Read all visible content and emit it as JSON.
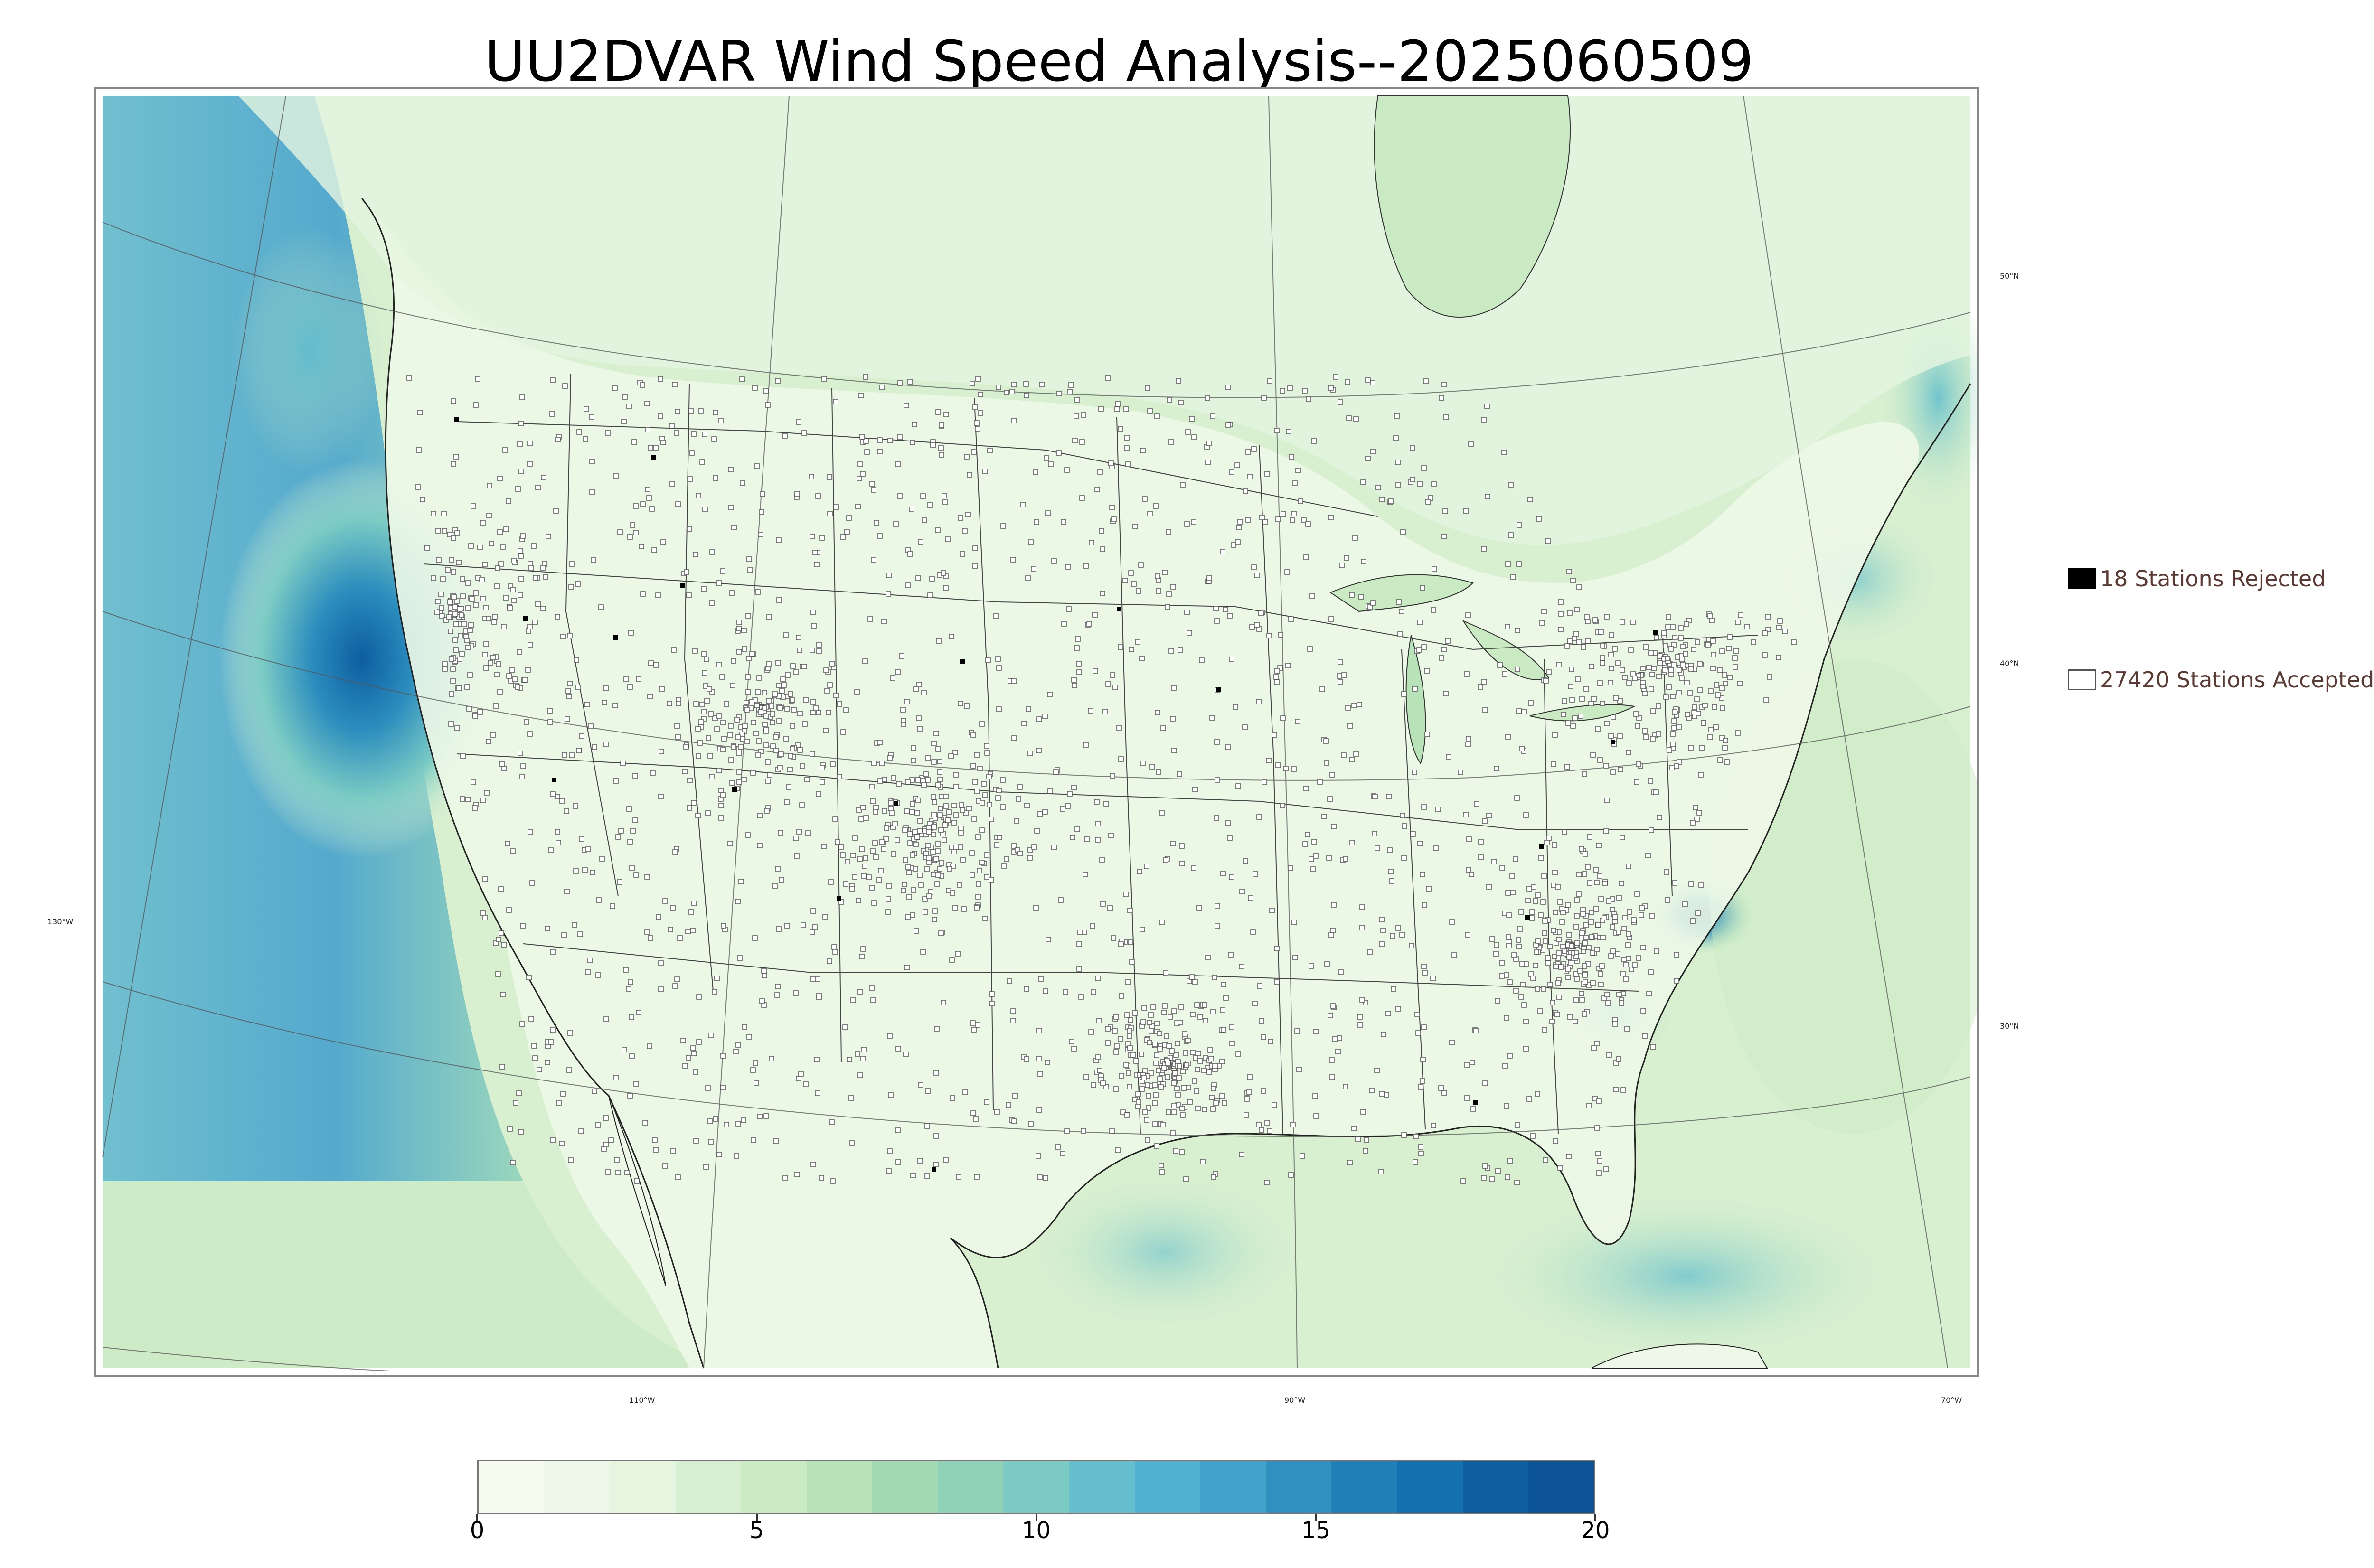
{
  "title": "UU2DVAR Wind Speed Analysis--2025060509",
  "graticule": {
    "lon_labels": [
      "130°W",
      "110°W",
      "90°W",
      "70°W"
    ],
    "lat_labels": [
      "50°N",
      "40°N",
      "30°N"
    ]
  },
  "legend": {
    "rejected_label": "18 Stations Rejected",
    "accepted_label": "27420 Stations Accepted"
  },
  "stations": {
    "rejected": 18,
    "accepted": 27420
  },
  "colorbar": {
    "ticks": [
      "0",
      "5",
      "10",
      "15",
      "20"
    ],
    "range": [
      0,
      20
    ],
    "colors": [
      "#f7fcf0",
      "#eef8e8",
      "#e5f5e0",
      "#d7efd1",
      "#c9eac3",
      "#b8e3b8",
      "#a3dab2",
      "#8fd2b9",
      "#7bcbc4",
      "#65bfcc",
      "#53b1d2",
      "#43a2ca",
      "#3090c0",
      "#2180b8",
      "#1570b0",
      "#0d5e9e",
      "#0b5394"
    ]
  },
  "colors": {
    "land": "#e8f5e0",
    "ocean_calm": "#d9f0d3",
    "ocean_windy": "#2b8cbe",
    "station_accepted": "#ffffff",
    "station_rejected": "#000000",
    "lines": "#333333"
  }
}
